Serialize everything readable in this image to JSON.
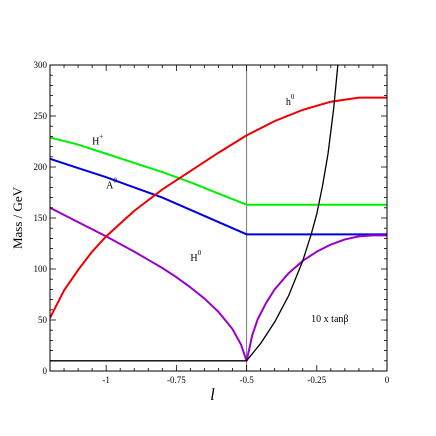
{
  "chart_data": {
    "type": "line",
    "title": "",
    "xlabel": "l",
    "ylabel": "Mass / GeV",
    "xlim": [
      -1.2,
      0
    ],
    "ylim": [
      0,
      300
    ],
    "grid": false,
    "x_ticks": [
      -1,
      -0.75,
      -0.5,
      -0.25,
      0
    ],
    "x_tick_labels": [
      "-1",
      "-0.75",
      "-0.5",
      "-0.25",
      "0"
    ],
    "y_ticks": [
      0,
      50,
      100,
      150,
      200,
      250,
      300
    ],
    "y_tick_labels": [
      "0",
      "50",
      "100",
      "150",
      "200",
      "250",
      "300"
    ],
    "vertical_line_x": -0.5,
    "series": [
      {
        "name": "H+",
        "color": "#00ee00",
        "x": [
          -1.2,
          -1.1,
          -1.0,
          -0.9,
          -0.8,
          -0.7,
          -0.6,
          -0.5,
          -0.4,
          -0.3,
          -0.2,
          -0.1,
          0
        ],
        "y": [
          229,
          222,
          213,
          204,
          195,
          185,
          174,
          163,
          163,
          163,
          163,
          163,
          163
        ]
      },
      {
        "name": "A0",
        "color": "#0000dd",
        "x": [
          -1.2,
          -1.1,
          -1.0,
          -0.9,
          -0.8,
          -0.7,
          -0.6,
          -0.5,
          -0.4,
          -0.3,
          -0.2,
          -0.1,
          0
        ],
        "y": [
          208,
          199,
          190,
          180,
          170,
          158,
          146,
          134,
          134,
          134,
          134,
          134,
          134
        ]
      },
      {
        "name": "H0",
        "color": "#9900cc",
        "x": [
          -1.2,
          -1.1,
          -1.0,
          -0.9,
          -0.85,
          -0.8,
          -0.75,
          -0.7,
          -0.65,
          -0.6,
          -0.55,
          -0.52,
          -0.5,
          -0.49,
          -0.48,
          -0.46,
          -0.43,
          -0.4,
          -0.35,
          -0.3,
          -0.25,
          -0.2,
          -0.15,
          -0.1,
          -0.05,
          0
        ],
        "y": [
          160,
          146,
          132,
          117,
          109,
          101,
          92,
          82,
          71,
          58,
          41,
          26,
          10,
          22,
          35,
          51,
          67,
          80,
          96,
          108,
          117,
          124,
          129,
          132,
          133,
          133
        ]
      },
      {
        "name": "h0",
        "color": "#ee0000",
        "x": [
          -1.2,
          -1.15,
          -1.1,
          -1.05,
          -1.0,
          -0.9,
          -0.8,
          -0.7,
          -0.6,
          -0.5,
          -0.4,
          -0.3,
          -0.2,
          -0.1,
          -0.05,
          0
        ],
        "y": [
          52,
          79,
          99,
          117,
          132,
          157,
          178,
          196,
          214,
          231,
          245,
          256,
          264,
          268,
          268,
          268
        ]
      },
      {
        "name": "10 x tanβ",
        "color": "#000000",
        "x": [
          -1.2,
          -1.0,
          -0.8,
          -0.6,
          -0.5,
          -0.45,
          -0.4,
          -0.35,
          -0.3,
          -0.27,
          -0.25,
          -0.23,
          -0.21,
          -0.19,
          -0.175
        ],
        "y": [
          10,
          10,
          10,
          10,
          10,
          27,
          48,
          74,
          108,
          134,
          154,
          181,
          213,
          257,
          300
        ]
      }
    ],
    "annotations": [
      {
        "text": "H",
        "sup": "+",
        "x": -1.05,
        "y": 222
      },
      {
        "text": "A",
        "sup": "0",
        "x": -1.0,
        "y": 179
      },
      {
        "text": "H",
        "sup": "0",
        "x": -0.7,
        "y": 108
      },
      {
        "text": "h",
        "sup": "0",
        "x": -0.36,
        "y": 261
      },
      {
        "text": "10 x tanβ",
        "sup": "",
        "x": -0.27,
        "y": 48
      }
    ]
  }
}
